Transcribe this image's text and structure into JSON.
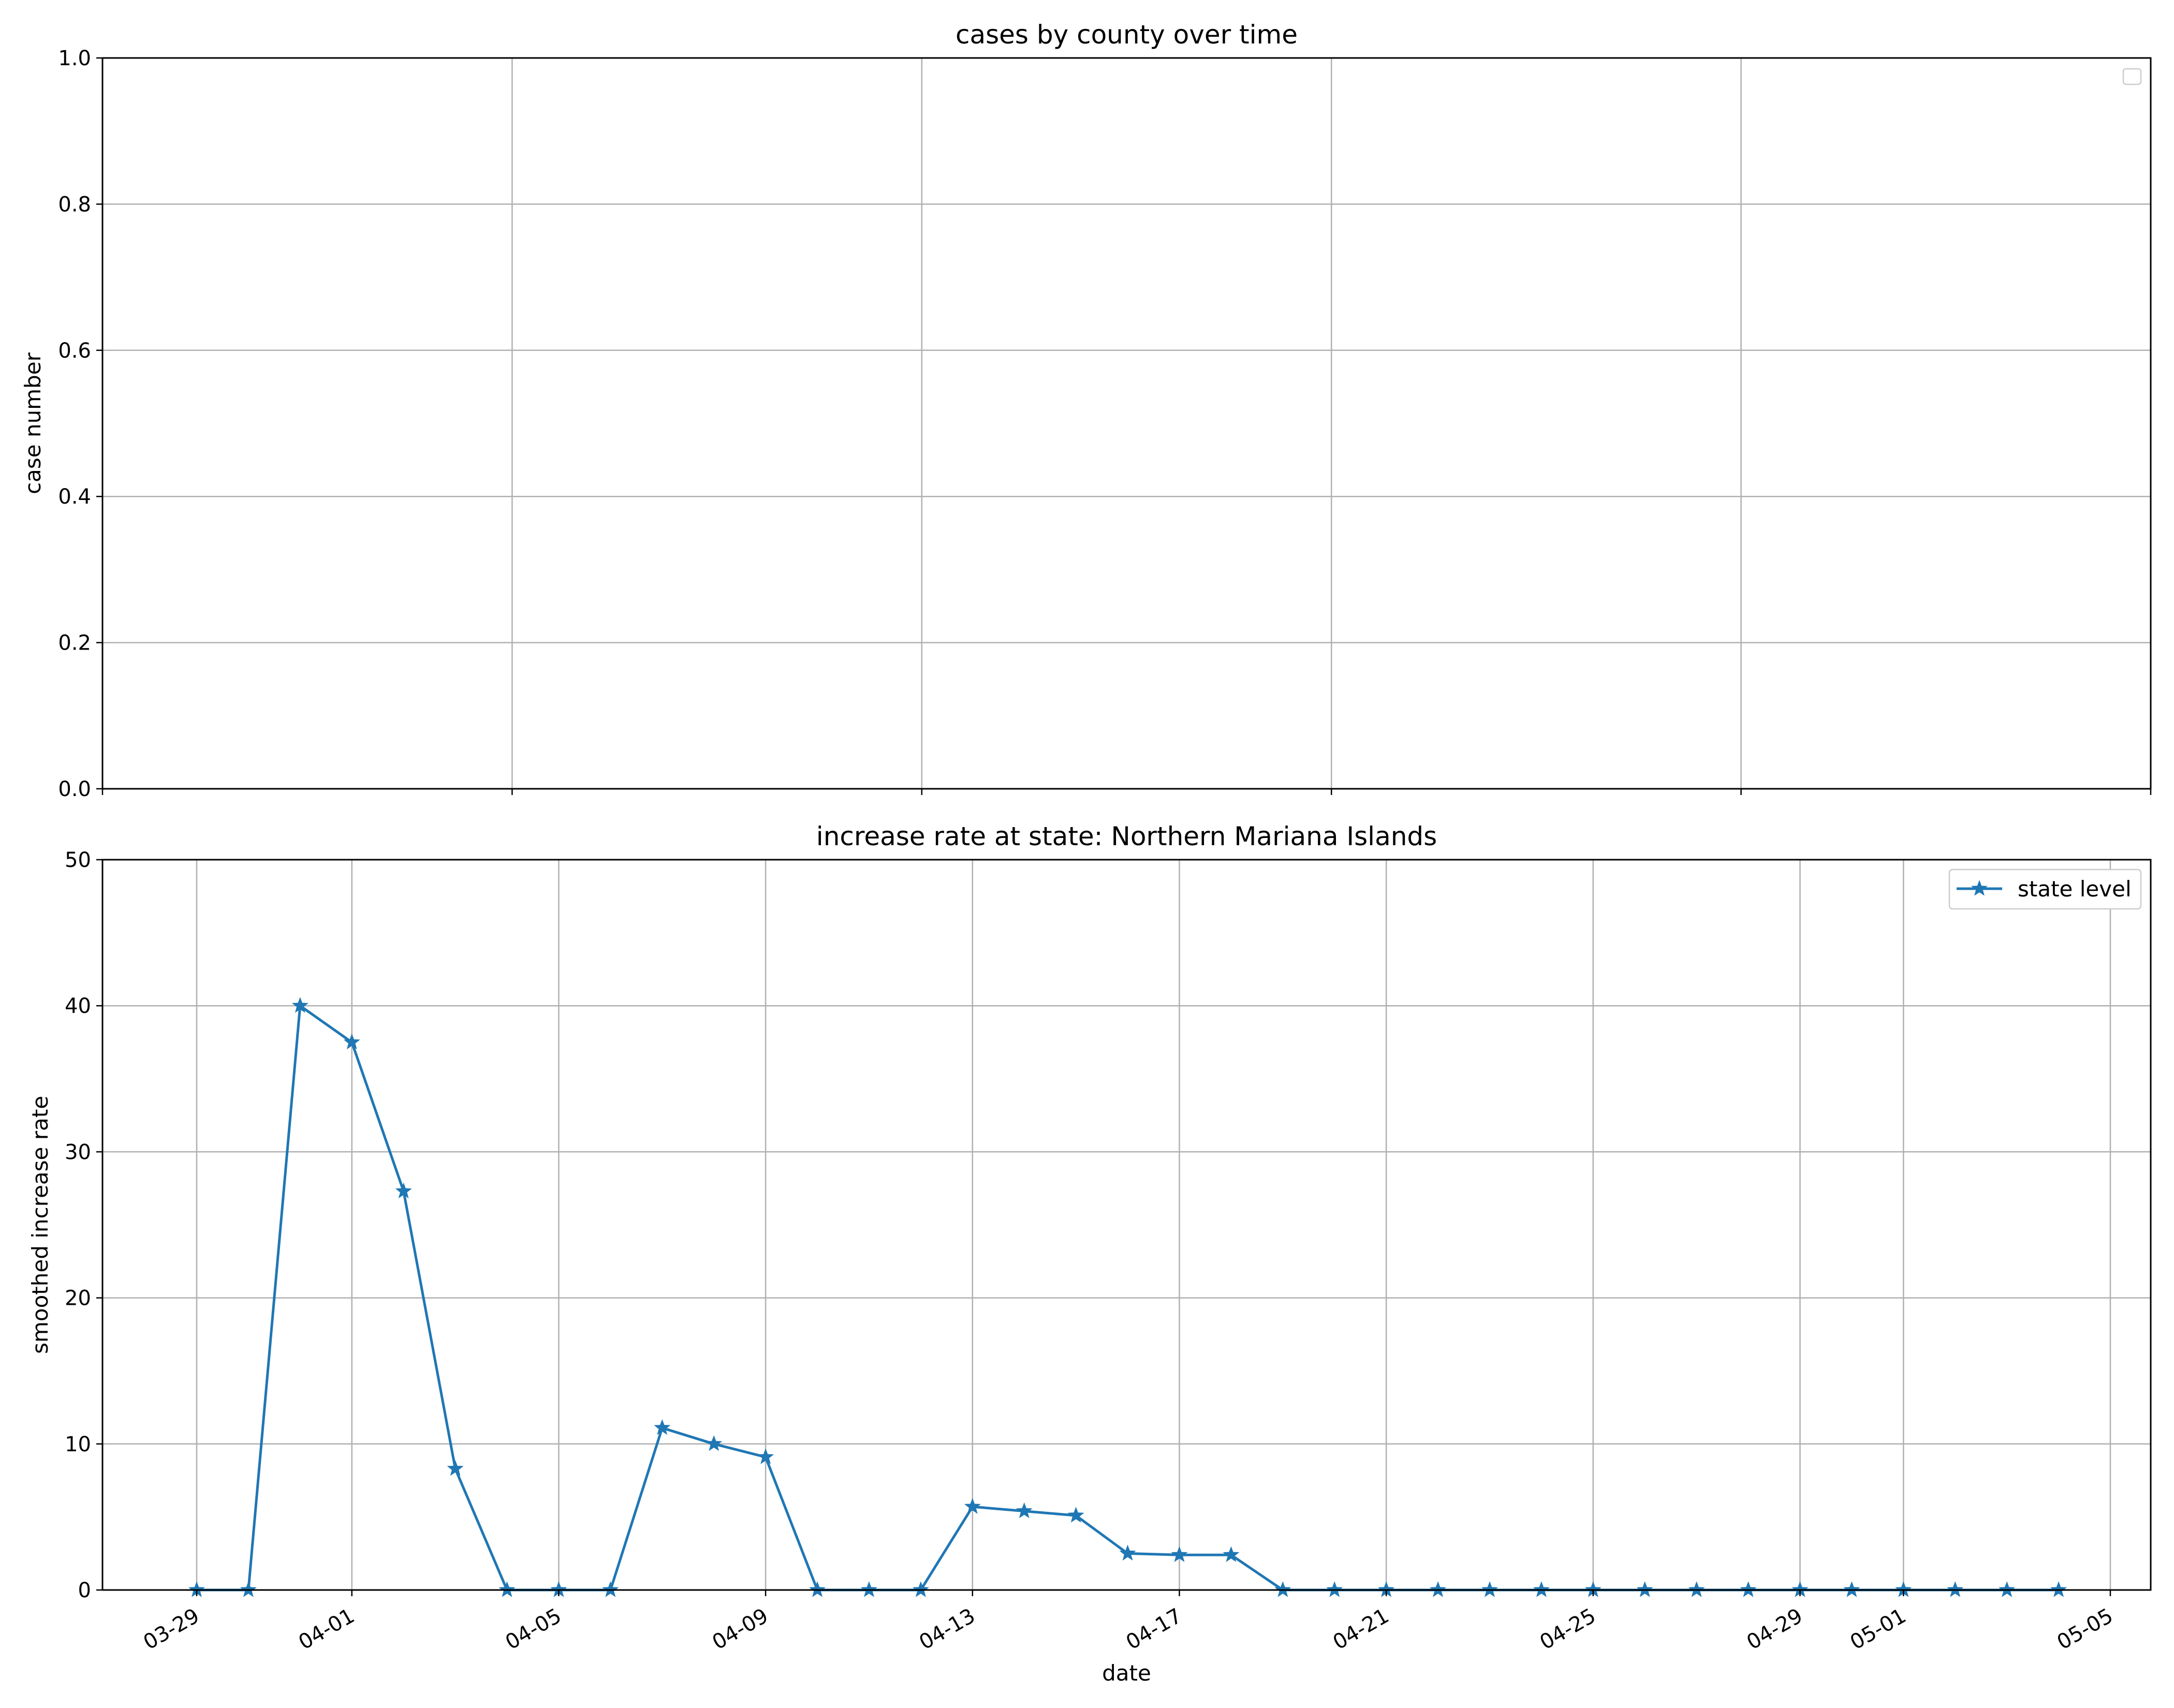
{
  "chart_data": [
    {
      "type": "line",
      "title": "cases by county over time",
      "xlabel": "",
      "ylabel": "case number",
      "ylim": [
        0,
        1.0
      ],
      "yticks": [
        "0.0",
        "0.2",
        "0.4",
        "0.6",
        "0.8",
        "1.0"
      ],
      "grid": true,
      "legend": {
        "position": "top-right",
        "entries": []
      },
      "series": []
    },
    {
      "type": "line",
      "title": "increase rate at state: Northern Mariana Islands",
      "xlabel": "date",
      "ylabel": "smoothed increase rate",
      "ylim": [
        0,
        50
      ],
      "yticks": [
        "0",
        "10",
        "20",
        "30",
        "40",
        "50"
      ],
      "xlim": [
        "2020-03-27",
        "2020-05-05"
      ],
      "xticks": [
        {
          "date": "2020-03-29",
          "label": "03-29"
        },
        {
          "date": "2020-04-01",
          "label": "04-01"
        },
        {
          "date": "2020-04-05",
          "label": "04-05"
        },
        {
          "date": "2020-04-09",
          "label": "04-09"
        },
        {
          "date": "2020-04-13",
          "label": "04-13"
        },
        {
          "date": "2020-04-17",
          "label": "04-17"
        },
        {
          "date": "2020-04-21",
          "label": "04-21"
        },
        {
          "date": "2020-04-25",
          "label": "04-25"
        },
        {
          "date": "2020-04-29",
          "label": "04-29"
        },
        {
          "date": "2020-05-01",
          "label": "05-01"
        },
        {
          "date": "2020-05-05",
          "label": "05-05"
        }
      ],
      "grid": true,
      "legend": {
        "position": "top-right",
        "entries": [
          "state level"
        ]
      },
      "series": [
        {
          "name": "state level",
          "color": "#1f77b4",
          "marker": "star",
          "x": [
            "2020-03-29",
            "2020-03-30",
            "2020-03-31",
            "2020-04-01",
            "2020-04-02",
            "2020-04-03",
            "2020-04-04",
            "2020-04-05",
            "2020-04-06",
            "2020-04-07",
            "2020-04-08",
            "2020-04-09",
            "2020-04-10",
            "2020-04-11",
            "2020-04-12",
            "2020-04-13",
            "2020-04-14",
            "2020-04-15",
            "2020-04-16",
            "2020-04-17",
            "2020-04-18",
            "2020-04-19",
            "2020-04-20",
            "2020-04-21",
            "2020-04-22",
            "2020-04-23",
            "2020-04-24",
            "2020-04-25",
            "2020-04-26",
            "2020-04-27",
            "2020-04-28",
            "2020-04-29",
            "2020-04-30",
            "2020-05-01",
            "2020-05-02",
            "2020-05-03",
            "2020-05-04"
          ],
          "y": [
            0,
            0,
            40.0,
            37.5,
            27.3,
            8.3,
            0,
            0,
            0,
            11.1,
            10.0,
            9.1,
            0,
            0,
            0,
            5.7,
            5.4,
            5.1,
            2.5,
            2.4,
            2.4,
            0,
            0,
            0,
            0,
            0,
            0,
            0,
            0,
            0,
            0,
            0,
            0,
            0,
            0,
            0,
            0
          ]
        }
      ]
    }
  ]
}
